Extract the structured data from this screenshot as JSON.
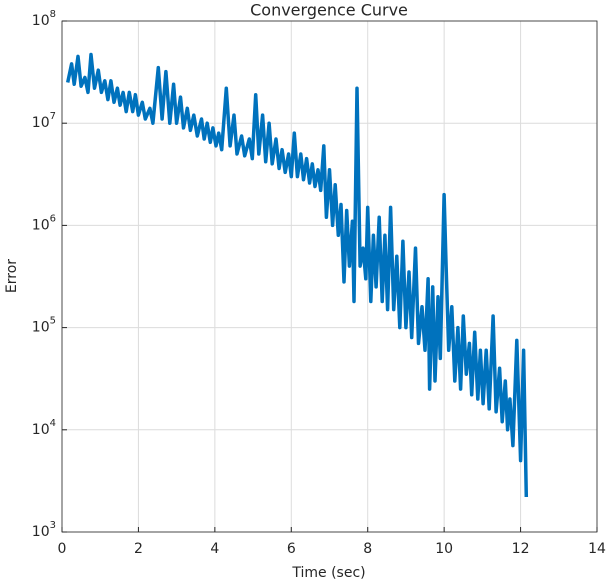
{
  "chart_data": {
    "type": "line",
    "title": "Convergence Curve",
    "xlabel": "Time (sec)",
    "ylabel": "Error",
    "log_y": true,
    "grid": true,
    "xlim": [
      0,
      14
    ],
    "xticks": [
      0,
      2,
      4,
      6,
      8,
      10,
      12,
      14
    ],
    "ylim": [
      1000,
      100000000
    ],
    "yticks": [
      {
        "value": 1000,
        "label": "10^3"
      },
      {
        "value": 10000,
        "label": "10^4"
      },
      {
        "value": 100000,
        "label": "10^5"
      },
      {
        "value": 1000000,
        "label": "10^6"
      },
      {
        "value": 10000000,
        "label": "10^7"
      },
      {
        "value": 100000000,
        "label": "10^8"
      }
    ],
    "series": [
      {
        "color": "#0072bd",
        "x": [
          0.15,
          0.25,
          0.32,
          0.42,
          0.5,
          0.6,
          0.68,
          0.76,
          0.85,
          0.95,
          1.03,
          1.12,
          1.2,
          1.28,
          1.36,
          1.45,
          1.52,
          1.6,
          1.68,
          1.76,
          1.85,
          1.92,
          2.0,
          2.1,
          2.18,
          2.3,
          2.38,
          2.52,
          2.62,
          2.72,
          2.82,
          2.92,
          3.0,
          3.1,
          3.18,
          3.28,
          3.36,
          3.45,
          3.54,
          3.65,
          3.72,
          3.8,
          3.88,
          3.95,
          4.03,
          4.1,
          4.18,
          4.3,
          4.4,
          4.5,
          4.58,
          4.7,
          4.78,
          4.9,
          4.98,
          5.07,
          5.15,
          5.25,
          5.33,
          5.42,
          5.5,
          5.6,
          5.68,
          5.76,
          5.84,
          5.93,
          6.0,
          6.08,
          6.16,
          6.25,
          6.32,
          6.4,
          6.48,
          6.55,
          6.62,
          6.7,
          6.77,
          6.85,
          6.92,
          7.0,
          7.08,
          7.15,
          7.23,
          7.3,
          7.38,
          7.45,
          7.52,
          7.6,
          7.64,
          7.72,
          7.8,
          7.88,
          7.95,
          8.0,
          8.08,
          8.15,
          8.22,
          8.3,
          8.38,
          8.45,
          8.52,
          8.6,
          8.68,
          8.76,
          8.84,
          8.92,
          9.0,
          9.08,
          9.15,
          9.25,
          9.33,
          9.42,
          9.5,
          9.58,
          9.62,
          9.7,
          9.76,
          9.84,
          9.9,
          10.0,
          10.05,
          10.12,
          10.2,
          10.28,
          10.36,
          10.43,
          10.5,
          10.58,
          10.66,
          10.72,
          10.8,
          10.88,
          10.95,
          11.02,
          11.1,
          11.18,
          11.28,
          11.36,
          11.45,
          11.52,
          11.6,
          11.66,
          11.72,
          11.8,
          11.9,
          12.0,
          12.08,
          12.15
        ],
        "values": [
          25000000,
          38000000,
          24000000,
          45000000,
          23000000,
          28000000,
          20000000,
          47000000,
          22000000,
          33000000,
          20000000,
          26000000,
          17000000,
          26000000,
          16000000,
          22000000,
          15000000,
          20000000,
          13000000,
          20000000,
          13000000,
          19000000,
          12000000,
          16000000,
          11000000,
          14000000,
          10000000,
          35000000,
          11000000,
          32000000,
          10000000,
          24000000,
          10000000,
          18000000,
          9000000,
          14000000,
          8500000,
          12000000,
          7500000,
          11000000,
          7000000,
          10000000,
          6500000,
          9000000,
          6000000,
          8000000,
          5500000,
          22000000,
          6000000,
          12000000,
          5000000,
          7500000,
          4800000,
          7000000,
          4500000,
          19000000,
          5000000,
          12000000,
          4200000,
          10000000,
          4000000,
          7000000,
          3600000,
          5500000,
          3300000,
          5000000,
          3000000,
          8000000,
          3000000,
          5000000,
          2800000,
          4500000,
          2600000,
          4000000,
          2400000,
          3500000,
          2200000,
          6000000,
          1200000,
          3500000,
          1000000,
          2500000,
          800000,
          1600000,
          280000,
          1400000,
          400000,
          1100000,
          180000,
          22000000,
          400000,
          600000,
          300000,
          1500000,
          180000,
          800000,
          250000,
          1200000,
          180000,
          800000,
          150000,
          1500000,
          150000,
          500000,
          100000,
          700000,
          100000,
          350000,
          80000,
          600000,
          70000,
          160000,
          60000,
          300000,
          25000,
          250000,
          30000,
          200000,
          50000,
          2000000,
          400000,
          60000,
          160000,
          30000,
          100000,
          25000,
          130000,
          35000,
          70000,
          22000,
          90000,
          20000,
          60000,
          18000,
          60000,
          16000,
          130000,
          15000,
          40000,
          12000,
          30000,
          10000,
          20000,
          7000,
          75000,
          5000,
          60000,
          2200
        ]
      }
    ]
  }
}
